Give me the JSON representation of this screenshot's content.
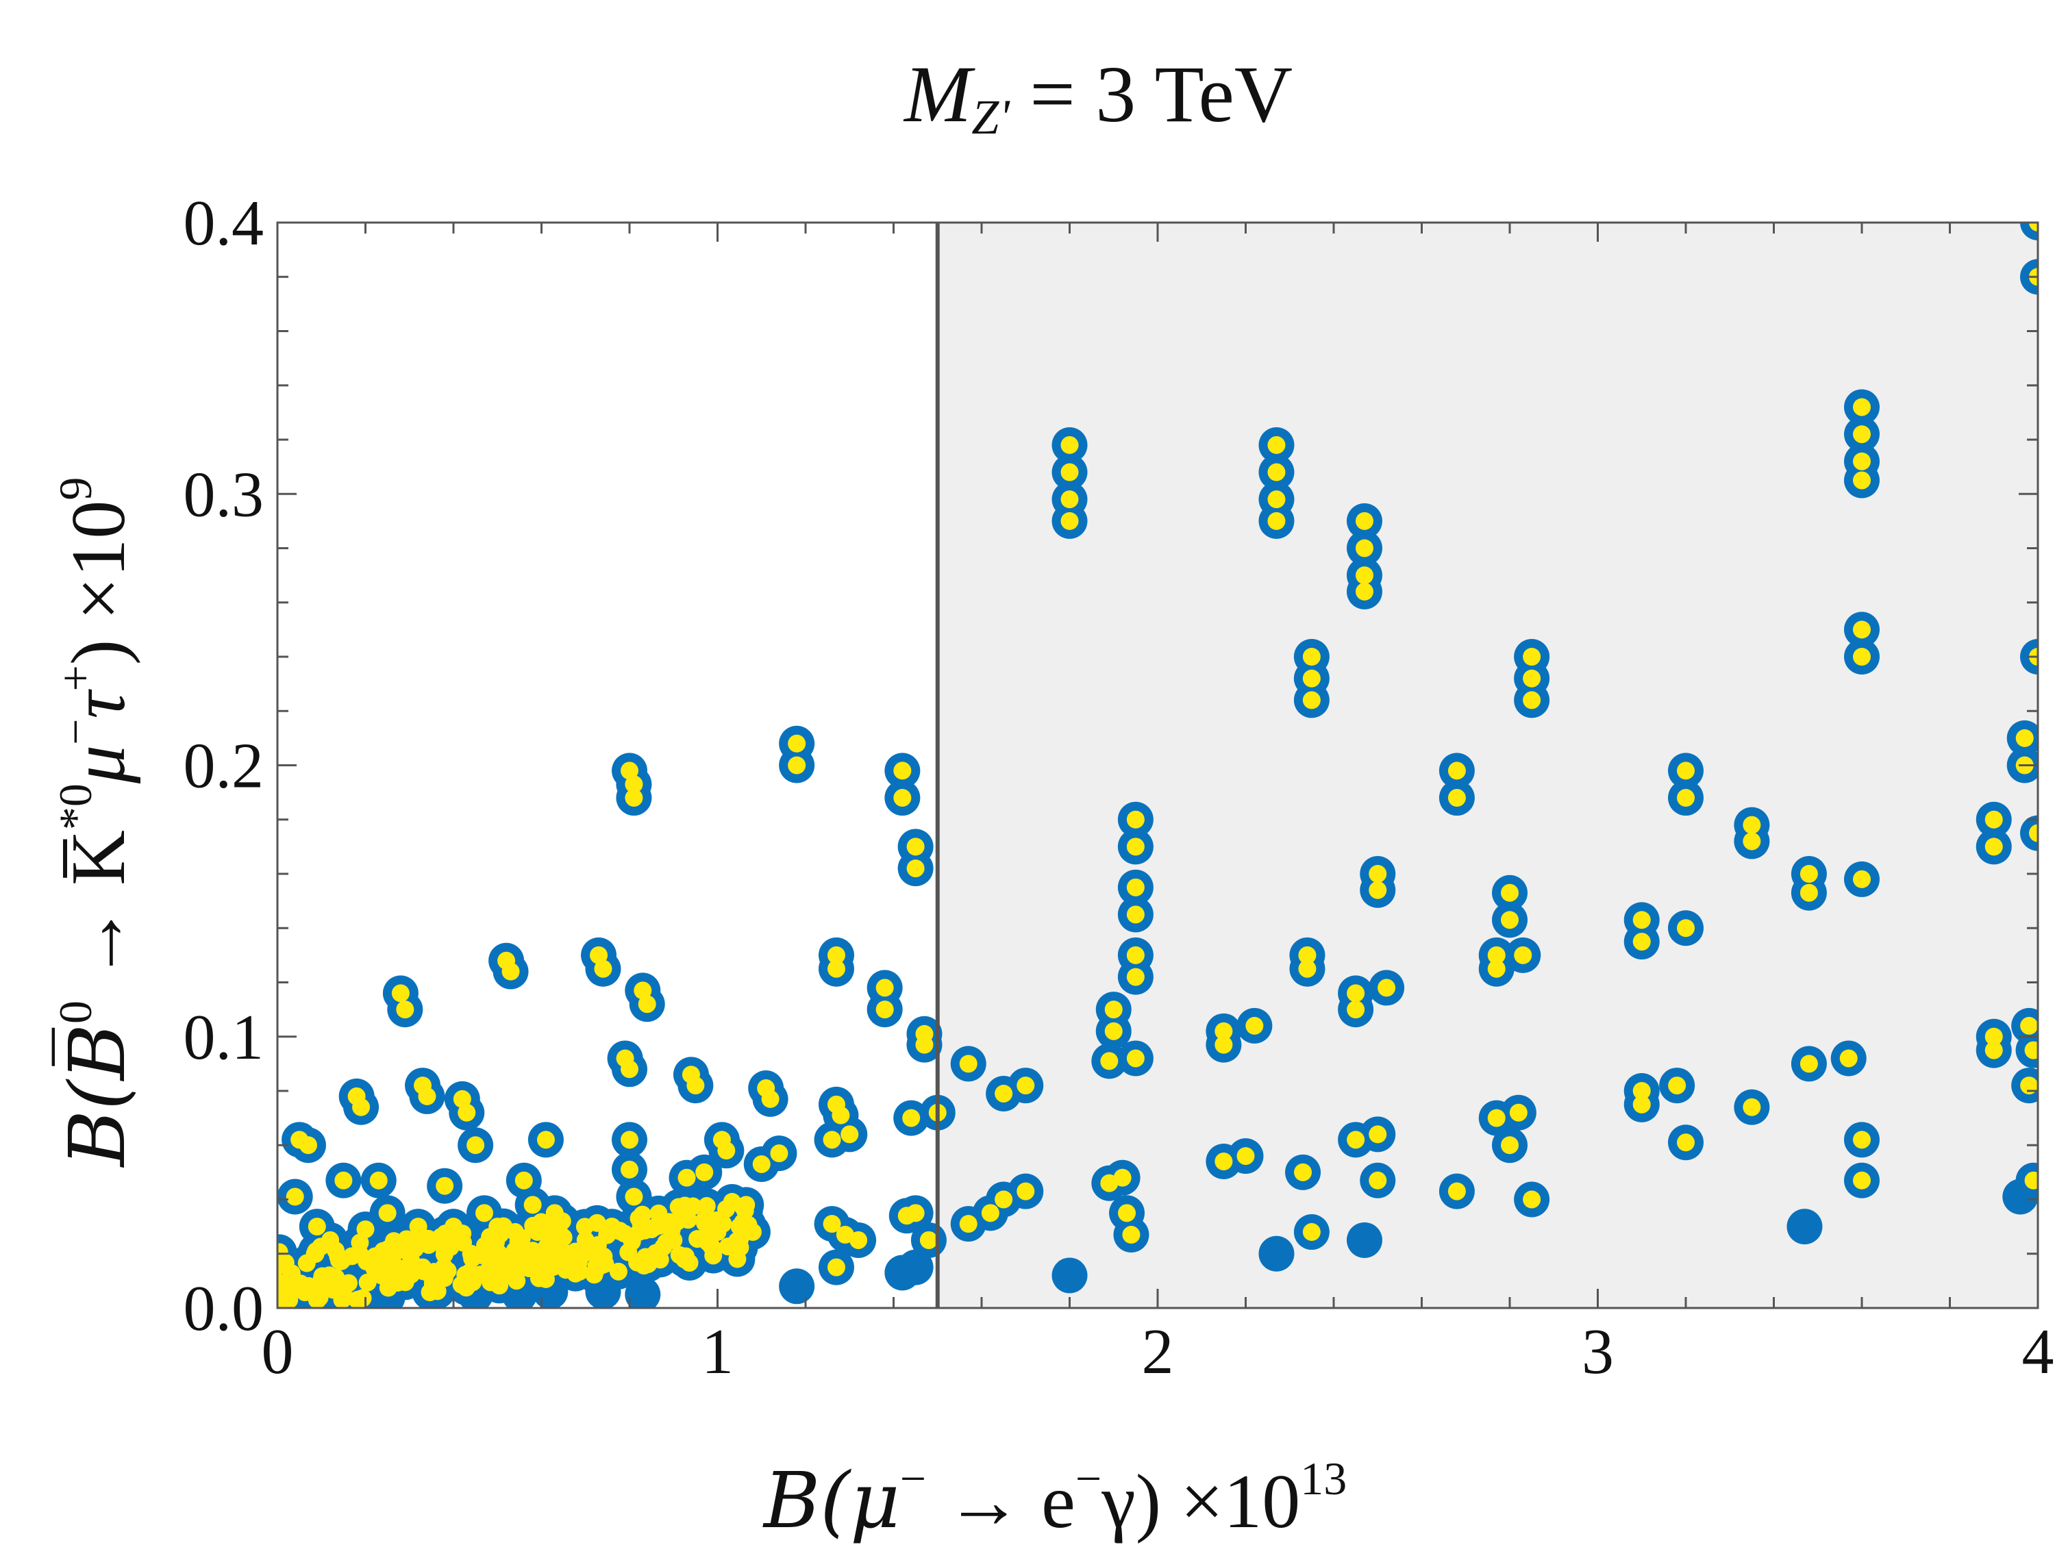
{
  "chart_data": {
    "type": "scatter",
    "title_main": "M",
    "title_sub": "Z'",
    "title_rest": " = 3 TeV",
    "xlabel": {
      "pre": "B(μ",
      "sup1": "−",
      "mid": " → e",
      "sup2": "−",
      "post": "γ) ×10",
      "exp": "13"
    },
    "ylabel": {
      "pre": "B(B̅",
      "sup1": "0",
      "mid": " → K̅",
      "sup2": "*0",
      "mid2": "μ",
      "sup3": "−",
      "mid3": "τ",
      "sup4": "+",
      "post": ") ×10",
      "exp": "9"
    },
    "xlim": [
      0,
      4
    ],
    "ylim": [
      0,
      0.4
    ],
    "x_ticks": [
      0,
      1,
      2,
      3,
      4
    ],
    "x_tick_labels": [
      "0",
      "1",
      "2",
      "3",
      "4"
    ],
    "y_ticks": [
      0.0,
      0.1,
      0.2,
      0.3,
      0.4
    ],
    "y_tick_labels": [
      "0.0",
      "0.1",
      "0.2",
      "0.3",
      "0.4"
    ],
    "excluded_region": {
      "x_from": 1.5,
      "x_to": 4,
      "fill": "#efefef"
    },
    "vertical_line_x": 1.5,
    "colors": {
      "outer": "#0a72bd",
      "inner": "#ffe90a",
      "frame": "#555555",
      "line": "#555555"
    },
    "series": [
      {
        "name": "blue (all points)",
        "points": [
          [
            0.05,
            0.062
          ],
          [
            0.07,
            0.06
          ],
          [
            0.04,
            0.041
          ],
          [
            0.09,
            0.03
          ],
          [
            0.12,
            0.025
          ],
          [
            0.15,
            0.047
          ],
          [
            0.18,
            0.078
          ],
          [
            0.19,
            0.074
          ],
          [
            0.2,
            0.029
          ],
          [
            0.23,
            0.047
          ],
          [
            0.24,
            0.021
          ],
          [
            0.25,
            0.035
          ],
          [
            0.28,
            0.116
          ],
          [
            0.29,
            0.11
          ],
          [
            0.3,
            0.02
          ],
          [
            0.32,
            0.03
          ],
          [
            0.33,
            0.015
          ],
          [
            0.33,
            0.082
          ],
          [
            0.34,
            0.078
          ],
          [
            0.36,
            0.025
          ],
          [
            0.38,
            0.045
          ],
          [
            0.4,
            0.03
          ],
          [
            0.42,
            0.077
          ],
          [
            0.43,
            0.072
          ],
          [
            0.44,
            0.02
          ],
          [
            0.45,
            0.06
          ],
          [
            0.47,
            0.035
          ],
          [
            0.5,
            0.03
          ],
          [
            0.52,
            0.128
          ],
          [
            0.53,
            0.124
          ],
          [
            0.54,
            0.028
          ],
          [
            0.56,
            0.047
          ],
          [
            0.58,
            0.038
          ],
          [
            0.6,
            0.029
          ],
          [
            0.61,
            0.062
          ],
          [
            0.63,
            0.035
          ],
          [
            0.65,
            0.026
          ],
          [
            0.7,
            0.025
          ],
          [
            0.73,
            0.13
          ],
          [
            0.74,
            0.125
          ],
          [
            0.76,
            0.03
          ],
          [
            0.79,
            0.092
          ],
          [
            0.8,
            0.088
          ],
          [
            0.8,
            0.198
          ],
          [
            0.81,
            0.193
          ],
          [
            0.81,
            0.188
          ],
          [
            0.8,
            0.062
          ],
          [
            0.8,
            0.051
          ],
          [
            0.81,
            0.041
          ],
          [
            0.83,
            0.117
          ],
          [
            0.84,
            0.112
          ],
          [
            0.85,
            0.029
          ],
          [
            0.9,
            0.025
          ],
          [
            0.93,
            0.048
          ],
          [
            0.94,
            0.086
          ],
          [
            0.95,
            0.082
          ],
          [
            0.97,
            0.05
          ],
          [
            1.0,
            0.028
          ],
          [
            1.01,
            0.062
          ],
          [
            1.02,
            0.058
          ],
          [
            1.05,
            0.03
          ],
          [
            1.08,
            0.028
          ],
          [
            1.1,
            0.053
          ],
          [
            1.11,
            0.081
          ],
          [
            1.12,
            0.077
          ],
          [
            1.14,
            0.057
          ],
          [
            1.18,
            0.208
          ],
          [
            1.18,
            0.2
          ],
          [
            1.27,
            0.13
          ],
          [
            1.27,
            0.125
          ],
          [
            1.26,
            0.062
          ],
          [
            1.27,
            0.075
          ],
          [
            1.28,
            0.071
          ],
          [
            1.3,
            0.064
          ],
          [
            1.26,
            0.031
          ],
          [
            1.27,
            0.015
          ],
          [
            1.29,
            0.027
          ],
          [
            1.32,
            0.025
          ],
          [
            1.38,
            0.118
          ],
          [
            1.38,
            0.11
          ],
          [
            1.42,
            0.198
          ],
          [
            1.42,
            0.188
          ],
          [
            1.45,
            0.17
          ],
          [
            1.45,
            0.162
          ],
          [
            1.44,
            0.07
          ],
          [
            1.43,
            0.034
          ],
          [
            1.45,
            0.035
          ],
          [
            1.47,
            0.101
          ],
          [
            1.47,
            0.097
          ],
          [
            1.48,
            0.025
          ],
          [
            1.5,
            0.072
          ],
          [
            1.57,
            0.09
          ],
          [
            1.57,
            0.031
          ],
          [
            1.65,
            0.079
          ],
          [
            1.7,
            0.082
          ],
          [
            1.62,
            0.035
          ],
          [
            1.65,
            0.04
          ],
          [
            1.7,
            0.043
          ],
          [
            1.8,
            0.318
          ],
          [
            1.8,
            0.308
          ],
          [
            1.8,
            0.298
          ],
          [
            1.8,
            0.29
          ],
          [
            1.9,
            0.11
          ],
          [
            1.9,
            0.102
          ],
          [
            1.89,
            0.091
          ],
          [
            1.89,
            0.046
          ],
          [
            1.92,
            0.048
          ],
          [
            1.93,
            0.035
          ],
          [
            1.94,
            0.027
          ],
          [
            1.95,
            0.18
          ],
          [
            1.95,
            0.17
          ],
          [
            1.95,
            0.155
          ],
          [
            1.95,
            0.145
          ],
          [
            1.95,
            0.13
          ],
          [
            1.95,
            0.122
          ],
          [
            1.95,
            0.092
          ],
          [
            2.15,
            0.102
          ],
          [
            2.15,
            0.097
          ],
          [
            2.15,
            0.054
          ],
          [
            2.2,
            0.056
          ],
          [
            2.22,
            0.104
          ],
          [
            2.27,
            0.318
          ],
          [
            2.27,
            0.308
          ],
          [
            2.27,
            0.298
          ],
          [
            2.27,
            0.29
          ],
          [
            2.34,
            0.13
          ],
          [
            2.34,
            0.125
          ],
          [
            2.33,
            0.05
          ],
          [
            2.35,
            0.24
          ],
          [
            2.35,
            0.232
          ],
          [
            2.35,
            0.224
          ],
          [
            2.35,
            0.028
          ],
          [
            2.45,
            0.116
          ],
          [
            2.45,
            0.11
          ],
          [
            2.45,
            0.062
          ],
          [
            2.47,
            0.29
          ],
          [
            2.47,
            0.28
          ],
          [
            2.47,
            0.27
          ],
          [
            2.47,
            0.264
          ],
          [
            2.5,
            0.16
          ],
          [
            2.5,
            0.154
          ],
          [
            2.5,
            0.047
          ],
          [
            2.52,
            0.118
          ],
          [
            2.5,
            0.064
          ],
          [
            2.68,
            0.198
          ],
          [
            2.68,
            0.188
          ],
          [
            2.68,
            0.043
          ],
          [
            2.77,
            0.13
          ],
          [
            2.77,
            0.125
          ],
          [
            2.77,
            0.07
          ],
          [
            2.8,
            0.153
          ],
          [
            2.8,
            0.143
          ],
          [
            2.8,
            0.06
          ],
          [
            2.82,
            0.072
          ],
          [
            2.83,
            0.13
          ],
          [
            2.85,
            0.24
          ],
          [
            2.85,
            0.232
          ],
          [
            2.85,
            0.224
          ],
          [
            2.85,
            0.04
          ],
          [
            3.1,
            0.143
          ],
          [
            3.1,
            0.135
          ],
          [
            3.1,
            0.08
          ],
          [
            3.1,
            0.075
          ],
          [
            3.18,
            0.082
          ],
          [
            3.2,
            0.198
          ],
          [
            3.2,
            0.188
          ],
          [
            3.2,
            0.14
          ],
          [
            3.2,
            0.061
          ],
          [
            3.35,
            0.178
          ],
          [
            3.35,
            0.172
          ],
          [
            3.35,
            0.074
          ],
          [
            3.48,
            0.16
          ],
          [
            3.48,
            0.153
          ],
          [
            3.48,
            0.09
          ],
          [
            3.57,
            0.092
          ],
          [
            3.6,
            0.158
          ],
          [
            3.6,
            0.332
          ],
          [
            3.6,
            0.322
          ],
          [
            3.6,
            0.312
          ],
          [
            3.6,
            0.305
          ],
          [
            3.6,
            0.25
          ],
          [
            3.6,
            0.24
          ],
          [
            3.6,
            0.062
          ],
          [
            3.6,
            0.047
          ],
          [
            3.9,
            0.18
          ],
          [
            3.9,
            0.17
          ],
          [
            3.9,
            0.1
          ],
          [
            3.9,
            0.095
          ],
          [
            3.97,
            0.2
          ],
          [
            3.97,
            0.21
          ],
          [
            3.98,
            0.082
          ],
          [
            3.98,
            0.104
          ],
          [
            3.99,
            0.095
          ],
          [
            4.0,
            0.4
          ],
          [
            4.0,
            0.38
          ],
          [
            4.0,
            0.24
          ],
          [
            4.0,
            0.175
          ],
          [
            3.99,
            0.047
          ]
        ]
      },
      {
        "name": "blue only",
        "points": [
          [
            0.05,
            0.006
          ],
          [
            0.15,
            0.005
          ],
          [
            0.25,
            0.004
          ],
          [
            0.35,
            0.006
          ],
          [
            0.45,
            0.005
          ],
          [
            0.55,
            0.005
          ],
          [
            0.62,
            0.006
          ],
          [
            0.74,
            0.006
          ],
          [
            0.83,
            0.005
          ],
          [
            1.18,
            0.008
          ],
          [
            1.42,
            0.013
          ],
          [
            1.45,
            0.015
          ],
          [
            1.8,
            0.012
          ],
          [
            2.27,
            0.02
          ],
          [
            2.47,
            0.025
          ],
          [
            3.47,
            0.03
          ],
          [
            3.96,
            0.041
          ]
        ]
      }
    ],
    "dense_band": {
      "x_range": [
        0,
        1.1
      ],
      "y_at_start": 0.01,
      "y_at_end": 0.03
    }
  }
}
